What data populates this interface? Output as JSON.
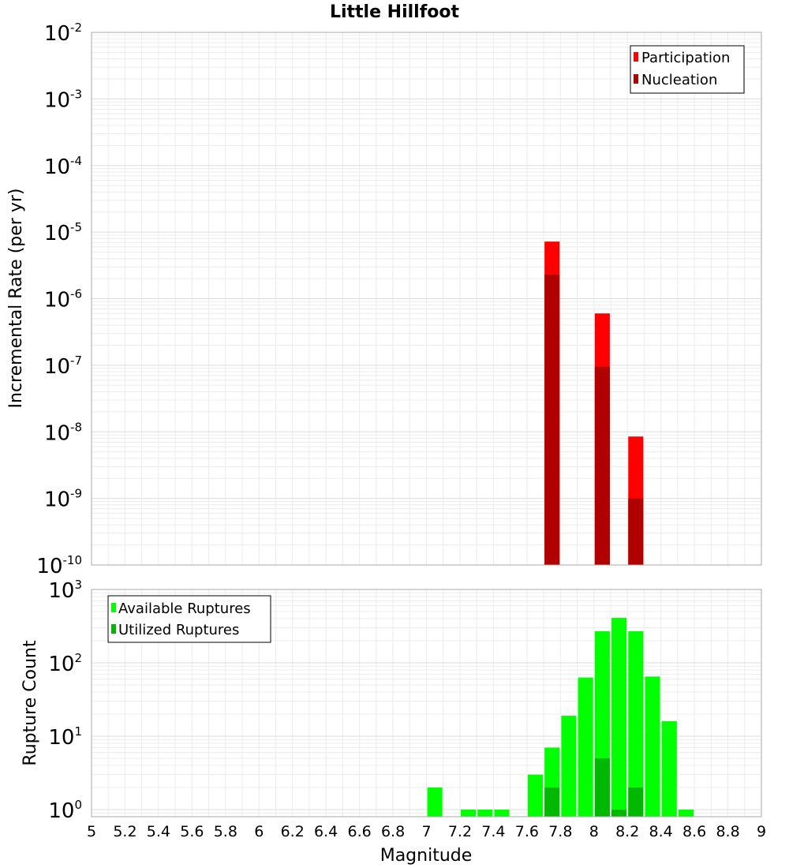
{
  "chart_data": [
    {
      "type": "bar",
      "title": "Little Hillfoot",
      "ylabel": "Incremental Rate (per yr)",
      "yscale": "log",
      "ylim": [
        1e-10,
        0.01
      ],
      "xlim": [
        5,
        9
      ],
      "y_ticks": [
        {
          "base": "10",
          "exp": "-10"
        },
        {
          "base": "10",
          "exp": "-9"
        },
        {
          "base": "10",
          "exp": "-8"
        },
        {
          "base": "10",
          "exp": "-7"
        },
        {
          "base": "10",
          "exp": "-6"
        },
        {
          "base": "10",
          "exp": "-5"
        },
        {
          "base": "10",
          "exp": "-4"
        },
        {
          "base": "10",
          "exp": "-3"
        },
        {
          "base": "10",
          "exp": "-2"
        }
      ],
      "bar_width": 0.09,
      "legend_position": "top-right",
      "grid": true,
      "series": [
        {
          "name": "Participation",
          "color": "#ff0000",
          "x": [
            7.75,
            8.05,
            8.25
          ],
          "values": [
            7.2e-06,
            6e-07,
            8.5e-09
          ]
        },
        {
          "name": "Nucleation",
          "color": "#b00000",
          "x": [
            7.75,
            8.05,
            8.25
          ],
          "values": [
            2.3e-06,
            9.5e-08,
            1e-09
          ]
        }
      ]
    },
    {
      "type": "bar",
      "xlabel": "Magnitude",
      "ylabel": "Rupture Count",
      "yscale": "log",
      "ylim": [
        0.8,
        1000
      ],
      "xlim": [
        5,
        9
      ],
      "x_ticks": [
        "5",
        "5.2",
        "5.4",
        "5.6",
        "5.8",
        "6",
        "6.2",
        "6.4",
        "6.6",
        "6.8",
        "7",
        "7.2",
        "7.4",
        "7.6",
        "7.8",
        "8",
        "8.2",
        "8.4",
        "8.6",
        "8.8",
        "9"
      ],
      "y_ticks": [
        {
          "base": "10",
          "exp": "0"
        },
        {
          "base": "10",
          "exp": "1"
        },
        {
          "base": "10",
          "exp": "2"
        },
        {
          "base": "10",
          "exp": "3"
        }
      ],
      "bar_width": 0.09,
      "legend_position": "top-left",
      "grid": true,
      "series": [
        {
          "name": "Available Ruptures",
          "color": "#00ff00",
          "x": [
            7.05,
            7.25,
            7.35,
            7.45,
            7.65,
            7.75,
            7.85,
            7.95,
            8.05,
            8.15,
            8.25,
            8.35,
            8.45,
            8.55
          ],
          "values": [
            2,
            1,
            1,
            1,
            3,
            7,
            19,
            63,
            270,
            410,
            270,
            65,
            16,
            1
          ]
        },
        {
          "name": "Utilized Ruptures",
          "color": "#00b800",
          "x": [
            7.75,
            8.05,
            8.15,
            8.25
          ],
          "values": [
            2,
            5,
            1,
            2
          ]
        }
      ]
    }
  ]
}
